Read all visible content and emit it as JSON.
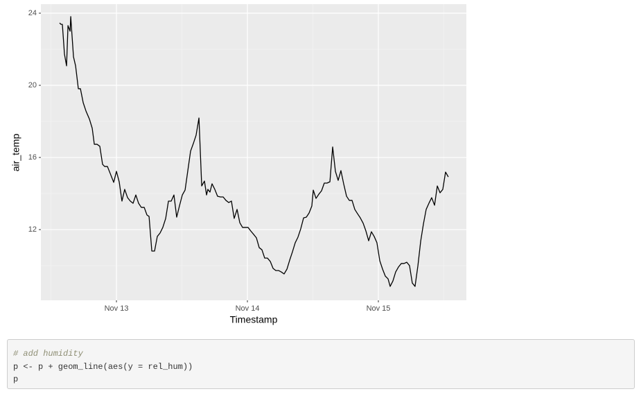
{
  "chart_data": {
    "type": "line",
    "x_label": "Timestamp",
    "y_label": "air_temp",
    "x": [
      12.566,
      12.577,
      12.587,
      12.603,
      12.619,
      12.63,
      12.646,
      12.651,
      12.656,
      12.672,
      12.688,
      12.709,
      12.725,
      12.746,
      12.767,
      12.794,
      12.815,
      12.831,
      12.852,
      12.873,
      12.894,
      12.91,
      12.931,
      12.952,
      12.979,
      13.0,
      13.021,
      13.042,
      13.063,
      13.085,
      13.106,
      13.127,
      13.148,
      13.169,
      13.19,
      13.212,
      13.233,
      13.249,
      13.27,
      13.291,
      13.312,
      13.333,
      13.354,
      13.376,
      13.397,
      13.418,
      13.439,
      13.46,
      13.481,
      13.503,
      13.524,
      13.545,
      13.566,
      13.587,
      13.608,
      13.63,
      13.651,
      13.672,
      13.688,
      13.698,
      13.714,
      13.73,
      13.751,
      13.772,
      13.794,
      13.815,
      13.836,
      13.857,
      13.878,
      13.899,
      13.921,
      13.942,
      13.963,
      13.984,
      14.005,
      14.026,
      14.048,
      14.069,
      14.09,
      14.111,
      14.132,
      14.153,
      14.175,
      14.196,
      14.217,
      14.238,
      14.259,
      14.28,
      14.302,
      14.323,
      14.344,
      14.365,
      14.386,
      14.407,
      14.429,
      14.45,
      14.471,
      14.492,
      14.503,
      14.524,
      14.545,
      14.566,
      14.587,
      14.608,
      14.63,
      14.651,
      14.672,
      14.693,
      14.714,
      14.735,
      14.757,
      14.778,
      14.799,
      14.82,
      14.841,
      14.862,
      14.884,
      14.905,
      14.926,
      14.947,
      14.968,
      14.989,
      15.011,
      15.032,
      15.053,
      15.074,
      15.09,
      15.111,
      15.132,
      15.153,
      15.175,
      15.196,
      15.217,
      15.238,
      15.259,
      15.28,
      15.302,
      15.323,
      15.344,
      15.365,
      15.386,
      15.407,
      15.429,
      15.45,
      15.471,
      15.492,
      15.513,
      15.534
    ],
    "values": [
      23.46,
      23.38,
      23.38,
      21.73,
      21.08,
      23.31,
      23.0,
      23.81,
      23.27,
      21.58,
      21.08,
      19.81,
      19.81,
      19.04,
      18.58,
      18.12,
      17.62,
      16.73,
      16.73,
      16.62,
      15.62,
      15.5,
      15.5,
      15.12,
      14.62,
      15.23,
      14.65,
      13.58,
      14.23,
      13.77,
      13.58,
      13.46,
      13.92,
      13.46,
      13.23,
      13.23,
      12.81,
      12.73,
      10.81,
      10.81,
      11.62,
      11.81,
      12.12,
      12.62,
      13.58,
      13.58,
      13.92,
      12.69,
      13.31,
      13.92,
      14.19,
      15.27,
      16.35,
      16.77,
      17.23,
      18.19,
      14.42,
      14.69,
      13.92,
      14.23,
      14.08,
      14.54,
      14.23,
      13.85,
      13.81,
      13.81,
      13.62,
      13.5,
      13.58,
      12.62,
      13.12,
      12.38,
      12.12,
      12.12,
      12.12,
      11.92,
      11.73,
      11.54,
      11.0,
      10.88,
      10.42,
      10.42,
      10.23,
      9.85,
      9.73,
      9.73,
      9.65,
      9.54,
      9.81,
      10.31,
      10.77,
      11.27,
      11.58,
      12.04,
      12.65,
      12.69,
      12.92,
      13.31,
      14.19,
      13.73,
      13.96,
      14.15,
      14.58,
      14.58,
      14.65,
      16.58,
      15.23,
      14.73,
      15.27,
      14.54,
      13.85,
      13.62,
      13.62,
      13.12,
      12.88,
      12.65,
      12.35,
      11.92,
      11.38,
      11.88,
      11.62,
      11.27,
      10.27,
      9.81,
      9.42,
      9.27,
      8.85,
      9.15,
      9.65,
      9.92,
      10.12,
      10.12,
      10.19,
      10.0,
      9.04,
      8.85,
      10.0,
      11.35,
      12.31,
      13.12,
      13.46,
      13.77,
      13.35,
      14.42,
      14.04,
      14.23,
      15.19,
      14.92
    ],
    "color": "#000000",
    "xlim": [
      12.423,
      15.672
    ],
    "xticks": [
      {
        "value": 13,
        "label": "Nov 13"
      },
      {
        "value": 14,
        "label": "Nov 14"
      },
      {
        "value": 15,
        "label": "Nov 15"
      }
    ],
    "ylim": [
      8.08,
      24.5
    ],
    "yticks": [
      12,
      16,
      20,
      24
    ],
    "grid": true
  },
  "code": {
    "lines": [
      "# add humidity",
      "p <- p + geom_line(aes(y = rel_hum))",
      "p"
    ]
  }
}
